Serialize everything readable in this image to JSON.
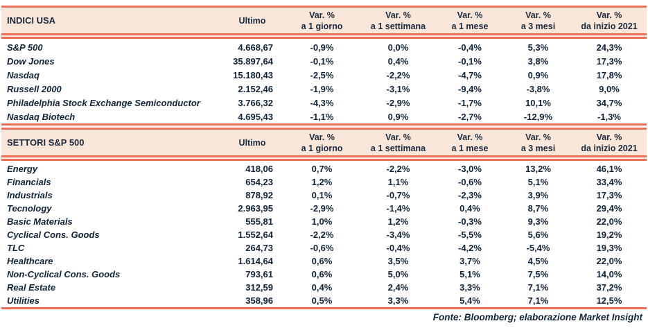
{
  "colors": {
    "accent_line": "#EC6E56",
    "header_bg": "#FBE7D9",
    "header_text": "#17293E",
    "body_text": "#10233A"
  },
  "columns": [
    {
      "label": "Ultimo"
    },
    {
      "line1": "Var. %",
      "line2": "a 1 giorno"
    },
    {
      "line1": "Var. %",
      "line2": "a 1 settimana"
    },
    {
      "line1": "Var. %",
      "line2": "a 1 mese"
    },
    {
      "line1": "Var. %",
      "line2": "a 3 mesi"
    },
    {
      "line1": "Var. %",
      "line2": "da inizio 2021"
    }
  ],
  "tables": [
    {
      "title": "INDICI USA",
      "rows": [
        {
          "label": "S&P 500",
          "ultimo": "4.668,67",
          "values": [
            "-0,9%",
            "0,0%",
            "-0,4%",
            "5,3%",
            "24,3%"
          ]
        },
        {
          "label": "Dow Jones",
          "ultimo": "35.897,64",
          "values": [
            "-0,1%",
            "0,4%",
            "-0,1%",
            "3,8%",
            "17,3%"
          ]
        },
        {
          "label": "Nasdaq",
          "ultimo": "15.180,43",
          "values": [
            "-2,5%",
            "-2,2%",
            "-4,7%",
            "0,9%",
            "17,8%"
          ]
        },
        {
          "label": "Russell 2000",
          "ultimo": "2.152,46",
          "values": [
            "-1,9%",
            "-3,1%",
            "-9,4%",
            "-3,8%",
            "9,0%"
          ]
        },
        {
          "label": "Philadelphia Stock Exchange Semiconductor",
          "ultimo": "3.766,32",
          "values": [
            "-4,3%",
            "-2,9%",
            "-1,7%",
            "10,1%",
            "34,7%"
          ]
        },
        {
          "label": "Nasdaq Biotech",
          "ultimo": "4.695,43",
          "values": [
            "-1,1%",
            "0,9%",
            "-2,7%",
            "-12,9%",
            "-1,3%"
          ]
        }
      ]
    },
    {
      "title": "SETTORI S&P 500",
      "rows": [
        {
          "label": "Energy",
          "ultimo": "418,06",
          "values": [
            "0,7%",
            "-2,2%",
            "-3,0%",
            "13,2%",
            "46,1%"
          ]
        },
        {
          "label": "Financials",
          "ultimo": "654,23",
          "values": [
            "1,2%",
            "1,1%",
            "-0,6%",
            "5,1%",
            "33,4%"
          ]
        },
        {
          "label": "Industrials",
          "ultimo": "878,92",
          "values": [
            "0,1%",
            "-0,7%",
            "-2,3%",
            "3,9%",
            "17,3%"
          ]
        },
        {
          "label": "Tecnology",
          "ultimo": "2.963,95",
          "values": [
            "-2,9%",
            "-1,4%",
            "0,4%",
            "8,7%",
            "29,4%"
          ]
        },
        {
          "label": "Basic Materials",
          "ultimo": "555,81",
          "values": [
            "1,0%",
            "1,2%",
            "-0,3%",
            "9,3%",
            "22,0%"
          ]
        },
        {
          "label": "Cyclical Cons. Goods",
          "ultimo": "1.552,64",
          "values": [
            "-2,2%",
            "-3,4%",
            "-5,5%",
            "5,6%",
            "19,2%"
          ]
        },
        {
          "label": "TLC",
          "ultimo": "264,73",
          "values": [
            "-0,6%",
            "-0,4%",
            "-4,2%",
            "-5,4%",
            "19,3%"
          ]
        },
        {
          "label": "Healthcare",
          "ultimo": "1.614,64",
          "values": [
            "0,6%",
            "3,5%",
            "3,7%",
            "4,5%",
            "22,0%"
          ]
        },
        {
          "label": "Non-Cyclical Cons. Goods",
          "ultimo": "793,61",
          "values": [
            "0,6%",
            "5,0%",
            "5,1%",
            "7,5%",
            "14,0%"
          ]
        },
        {
          "label": "Real Estate",
          "ultimo": "312,59",
          "values": [
            "0,4%",
            "2,4%",
            "3,3%",
            "7,1%",
            "37,2%"
          ]
        },
        {
          "label": "Utilities",
          "ultimo": "358,96",
          "values": [
            "0,5%",
            "3,3%",
            "5,4%",
            "7,1%",
            "12,5%"
          ]
        }
      ]
    }
  ],
  "footer": {
    "source_text": "Fonte: Bloomberg; elaborazione Market Insight"
  }
}
